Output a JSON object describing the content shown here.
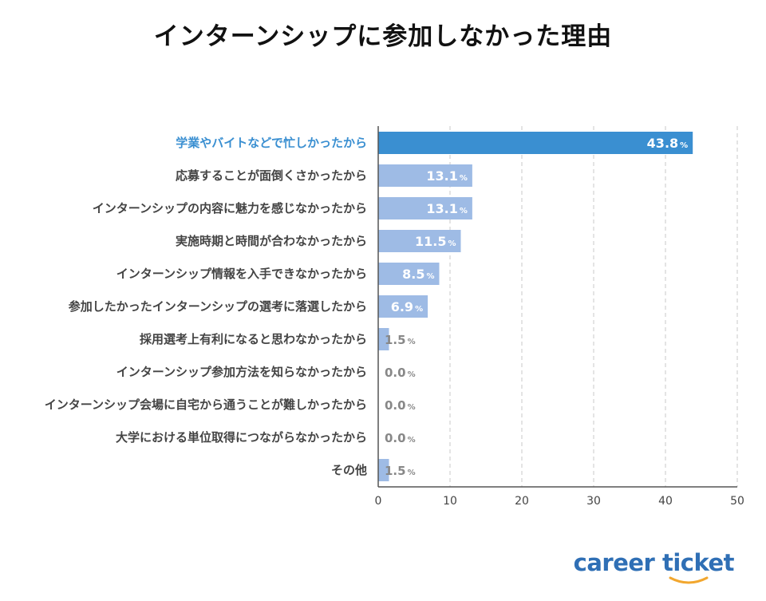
{
  "title": "インターンシップに参加しなかった理由",
  "brand": "career ticket",
  "colors": {
    "highlight": "#3a8fd1",
    "bar": "#9ebbe5",
    "highlight_label": "#3a8fd1",
    "brand": "#2f6fb5",
    "brand_accent": "#f2a72f"
  },
  "chart_data": {
    "type": "bar",
    "orientation": "horizontal",
    "title": "インターンシップに参加しなかった理由",
    "categories": [
      "学業やバイトなどで忙しかったから",
      "応募することが面倒くさかったから",
      "インターンシップの内容に魅力を感じなかったから",
      "実施時期と時間が合わなかったから",
      "インターンシップ情報を入手できなかったから",
      "参加したかったインターンシップの選考に落選したから",
      "採用選考上有利になると思わなかったから",
      "インターンシップ参加方法を知らなかったから",
      "インターンシップ会場に自宅から通うことが難しかったから",
      "大学における単位取得につながらなかったから",
      "その他"
    ],
    "values": [
      43.8,
      13.1,
      13.1,
      11.5,
      8.5,
      6.9,
      1.5,
      0.0,
      0.0,
      0.0,
      1.5
    ],
    "value_labels": [
      "43.8",
      "13.1",
      "13.1",
      "11.5",
      "8.5",
      "6.9",
      "1.5",
      "0.0",
      "0.0",
      "0.0",
      "1.5"
    ],
    "unit": "%",
    "highlight_index": 0,
    "xlim": [
      0,
      50
    ],
    "xticks": [
      "0",
      "10",
      "20",
      "30",
      "40",
      "50"
    ],
    "grid": "vertical dashed"
  }
}
